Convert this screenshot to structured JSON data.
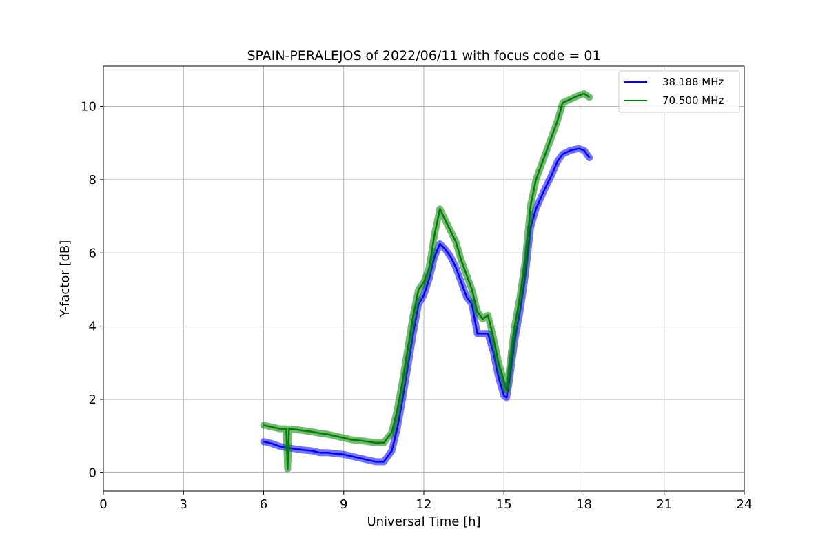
{
  "chart_data": {
    "type": "line",
    "title": "SPAIN-PERALEJOS of 2022/06/11 with focus code = 01",
    "xlabel": "Universal Time [h]",
    "ylabel": "Y-factor [dB]",
    "xlim": [
      0,
      24
    ],
    "ylim": [
      -0.5,
      11.1
    ],
    "xticks": [
      0,
      3,
      6,
      9,
      12,
      15,
      18,
      21,
      24
    ],
    "yticks": [
      0,
      2,
      4,
      6,
      8,
      10
    ],
    "grid": true,
    "legend_position": "top-right",
    "series": [
      {
        "name": "38.188 MHz",
        "color": "#0000ff",
        "x": [
          6.0,
          6.3,
          6.6,
          6.9,
          7.2,
          7.5,
          7.8,
          8.1,
          8.4,
          8.7,
          9.0,
          9.3,
          9.6,
          9.9,
          10.2,
          10.5,
          10.8,
          11.0,
          11.2,
          11.4,
          11.6,
          11.8,
          12.0,
          12.2,
          12.4,
          12.6,
          12.8,
          13.0,
          13.2,
          13.4,
          13.6,
          13.8,
          14.0,
          14.2,
          14.4,
          14.6,
          14.8,
          15.0,
          15.1,
          15.2,
          15.4,
          15.6,
          15.8,
          16.0,
          16.2,
          16.5,
          16.8,
          17.0,
          17.2,
          17.5,
          17.8,
          18.0,
          18.2
        ],
        "y": [
          0.85,
          0.8,
          0.72,
          0.68,
          0.65,
          0.62,
          0.6,
          0.55,
          0.55,
          0.52,
          0.5,
          0.45,
          0.4,
          0.35,
          0.3,
          0.3,
          0.6,
          1.2,
          2.0,
          2.9,
          3.8,
          4.6,
          4.85,
          5.3,
          5.9,
          6.25,
          6.1,
          5.9,
          5.6,
          5.2,
          4.8,
          4.6,
          3.8,
          3.8,
          3.8,
          3.3,
          2.6,
          2.1,
          2.05,
          2.5,
          3.6,
          4.4,
          5.4,
          6.7,
          7.2,
          7.7,
          8.15,
          8.5,
          8.7,
          8.8,
          8.85,
          8.8,
          8.6
        ]
      },
      {
        "name": "70.500 MHz",
        "color": "#008000",
        "x": [
          6.0,
          6.3,
          6.6,
          6.85,
          6.9,
          6.95,
          7.2,
          7.5,
          7.8,
          8.1,
          8.4,
          8.7,
          9.0,
          9.3,
          9.6,
          9.9,
          10.2,
          10.5,
          10.8,
          11.0,
          11.2,
          11.4,
          11.6,
          11.8,
          12.0,
          12.2,
          12.4,
          12.6,
          12.8,
          13.0,
          13.2,
          13.4,
          13.6,
          13.8,
          14.0,
          14.2,
          14.4,
          14.6,
          14.8,
          15.0,
          15.1,
          15.2,
          15.4,
          15.6,
          15.8,
          16.0,
          16.2,
          16.5,
          16.8,
          17.0,
          17.2,
          17.5,
          17.8,
          18.0,
          18.2
        ],
        "y": [
          1.3,
          1.25,
          1.2,
          1.2,
          0.1,
          1.2,
          1.18,
          1.15,
          1.12,
          1.08,
          1.05,
          1.0,
          0.95,
          0.9,
          0.88,
          0.85,
          0.82,
          0.82,
          1.1,
          1.7,
          2.5,
          3.4,
          4.3,
          5.0,
          5.2,
          5.6,
          6.5,
          7.2,
          6.9,
          6.6,
          6.3,
          5.8,
          5.4,
          5.0,
          4.4,
          4.2,
          4.3,
          3.7,
          3.0,
          2.5,
          2.25,
          2.8,
          4.0,
          4.8,
          5.8,
          7.3,
          8.0,
          8.6,
          9.2,
          9.6,
          10.1,
          10.2,
          10.3,
          10.35,
          10.25
        ]
      }
    ]
  }
}
